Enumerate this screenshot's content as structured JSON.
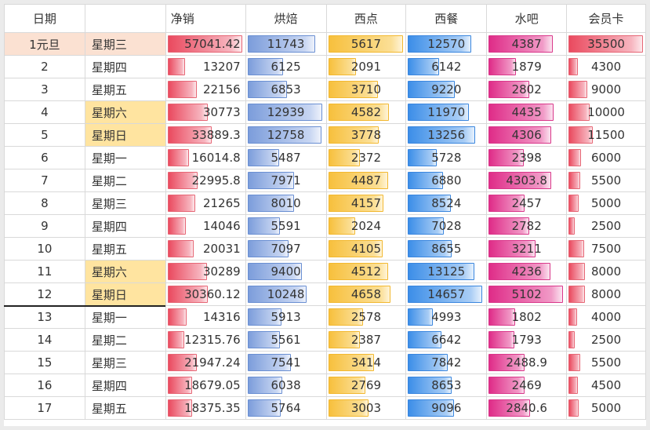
{
  "headers": [
    "日期",
    "",
    "净销",
    "烘焙",
    "西点",
    "西餐",
    "水吧",
    "会员卡"
  ],
  "colors": {
    "net_sales": "#ea4a5f",
    "bakery": "#7c9ddb",
    "pastry": "#f7c03d",
    "western": "#3c8ee8",
    "bar": "#df2c88",
    "card": "#ea4a5f",
    "weekend": "#ffe4a0",
    "first_row": "#fbe1d2"
  },
  "rows": [
    {
      "date": "1元旦",
      "weekday": "星期三",
      "net": "57041.42",
      "bake": "11743",
      "pastry": "5617",
      "west": "12570",
      "drink": "4387",
      "card": "35500",
      "weekend": false
    },
    {
      "date": "2",
      "weekday": "星期四",
      "net": "13207",
      "bake": "6125",
      "pastry": "2091",
      "west": "6142",
      "drink": "1879",
      "card": "4300",
      "weekend": false
    },
    {
      "date": "3",
      "weekday": "星期五",
      "net": "22156",
      "bake": "6853",
      "pastry": "3710",
      "west": "9220",
      "drink": "2802",
      "card": "9000",
      "weekend": false
    },
    {
      "date": "4",
      "weekday": "星期六",
      "net": "30773",
      "bake": "12939",
      "pastry": "4582",
      "west": "11970",
      "drink": "4435",
      "card": "10000",
      "weekend": true
    },
    {
      "date": "5",
      "weekday": "星期日",
      "net": "33889.3",
      "bake": "12758",
      "pastry": "3778",
      "west": "13256",
      "drink": "4306",
      "card": "11500",
      "weekend": true
    },
    {
      "date": "6",
      "weekday": "星期一",
      "net": "16014.8",
      "bake": "5487",
      "pastry": "2372",
      "west": "5728",
      "drink": "2398",
      "card": "6000",
      "weekend": false
    },
    {
      "date": "7",
      "weekday": "星期二",
      "net": "22995.8",
      "bake": "7971",
      "pastry": "4487",
      "west": "6880",
      "drink": "4303.8",
      "card": "5500",
      "weekend": false
    },
    {
      "date": "8",
      "weekday": "星期三",
      "net": "21265",
      "bake": "8010",
      "pastry": "4157",
      "west": "8524",
      "drink": "2457",
      "card": "5000",
      "weekend": false
    },
    {
      "date": "9",
      "weekday": "星期四",
      "net": "14046",
      "bake": "5591",
      "pastry": "2024",
      "west": "7028",
      "drink": "2782",
      "card": "2500",
      "weekend": false
    },
    {
      "date": "10",
      "weekday": "星期五",
      "net": "20031",
      "bake": "7097",
      "pastry": "4105",
      "west": "8655",
      "drink": "3211",
      "card": "7500",
      "weekend": false
    },
    {
      "date": "11",
      "weekday": "星期六",
      "net": "30289",
      "bake": "9400",
      "pastry": "4512",
      "west": "13125",
      "drink": "4236",
      "card": "8000",
      "weekend": true
    },
    {
      "date": "12",
      "weekday": "星期日",
      "net": "30360.12",
      "bake": "10248",
      "pastry": "4658",
      "west": "14657",
      "drink": "5102",
      "card": "8000",
      "weekend": true
    },
    {
      "date": "13",
      "weekday": "星期一",
      "net": "14316",
      "bake": "5913",
      "pastry": "2578",
      "west": "4993",
      "drink": "1802",
      "card": "4000",
      "weekend": false
    },
    {
      "date": "14",
      "weekday": "星期二",
      "net": "12315.76",
      "bake": "5561",
      "pastry": "2387",
      "west": "6642",
      "drink": "1793",
      "card": "2500",
      "weekend": false
    },
    {
      "date": "15",
      "weekday": "星期三",
      "net": "21947.24",
      "bake": "7541",
      "pastry": "3414",
      "west": "7842",
      "drink": "2488.9",
      "card": "5500",
      "weekend": false
    },
    {
      "date": "16",
      "weekday": "星期四",
      "net": "18679.05",
      "bake": "6038",
      "pastry": "2769",
      "west": "8653",
      "drink": "2469",
      "card": "4500",
      "weekend": false
    },
    {
      "date": "17",
      "weekday": "星期五",
      "net": "18375.35",
      "bake": "5764",
      "pastry": "3003",
      "west": "9096",
      "drink": "2840.6",
      "card": "5000",
      "weekend": false
    }
  ]
}
